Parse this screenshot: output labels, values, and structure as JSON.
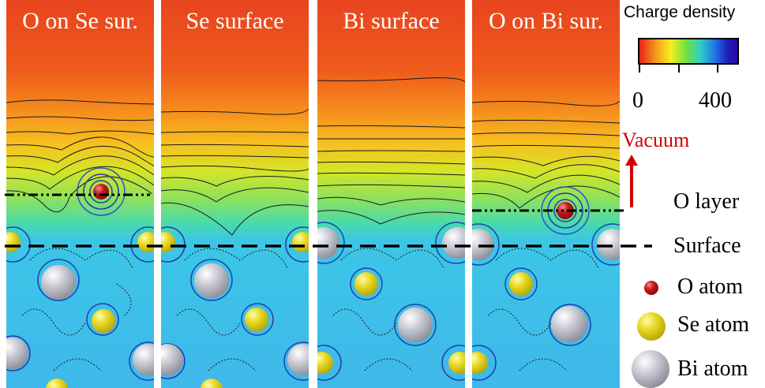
{
  "panels": [
    {
      "title": "O on Se sur.",
      "surface": "Se",
      "oxygen": true
    },
    {
      "title": "Se surface",
      "surface": "Se",
      "oxygen": false
    },
    {
      "title": "Bi surface",
      "surface": "Bi",
      "oxygen": false
    },
    {
      "title": "O on Bi sur.",
      "surface": "Bi",
      "oxygen": true
    }
  ],
  "legend": {
    "title": "Charge density",
    "tick_min": "0",
    "tick_max": "400",
    "colorbar_colors": [
      "#e8231c",
      "#f5a21d",
      "#f7ee22",
      "#6fe03c",
      "#2fd0c6",
      "#1f6fe8",
      "#2a0aa0"
    ]
  },
  "labels": {
    "vacuum": "Vacuum",
    "o_layer": "O layer",
    "surface": "Surface",
    "o_atom": "O atom",
    "se_atom": "Se atom",
    "bi_atom": "Bi atom"
  },
  "colors": {
    "o_atom": "#b01818",
    "se_atom": "#e0d020",
    "bi_atom": "#b8b8c4",
    "vacuum_arrow": "#d40000"
  }
}
